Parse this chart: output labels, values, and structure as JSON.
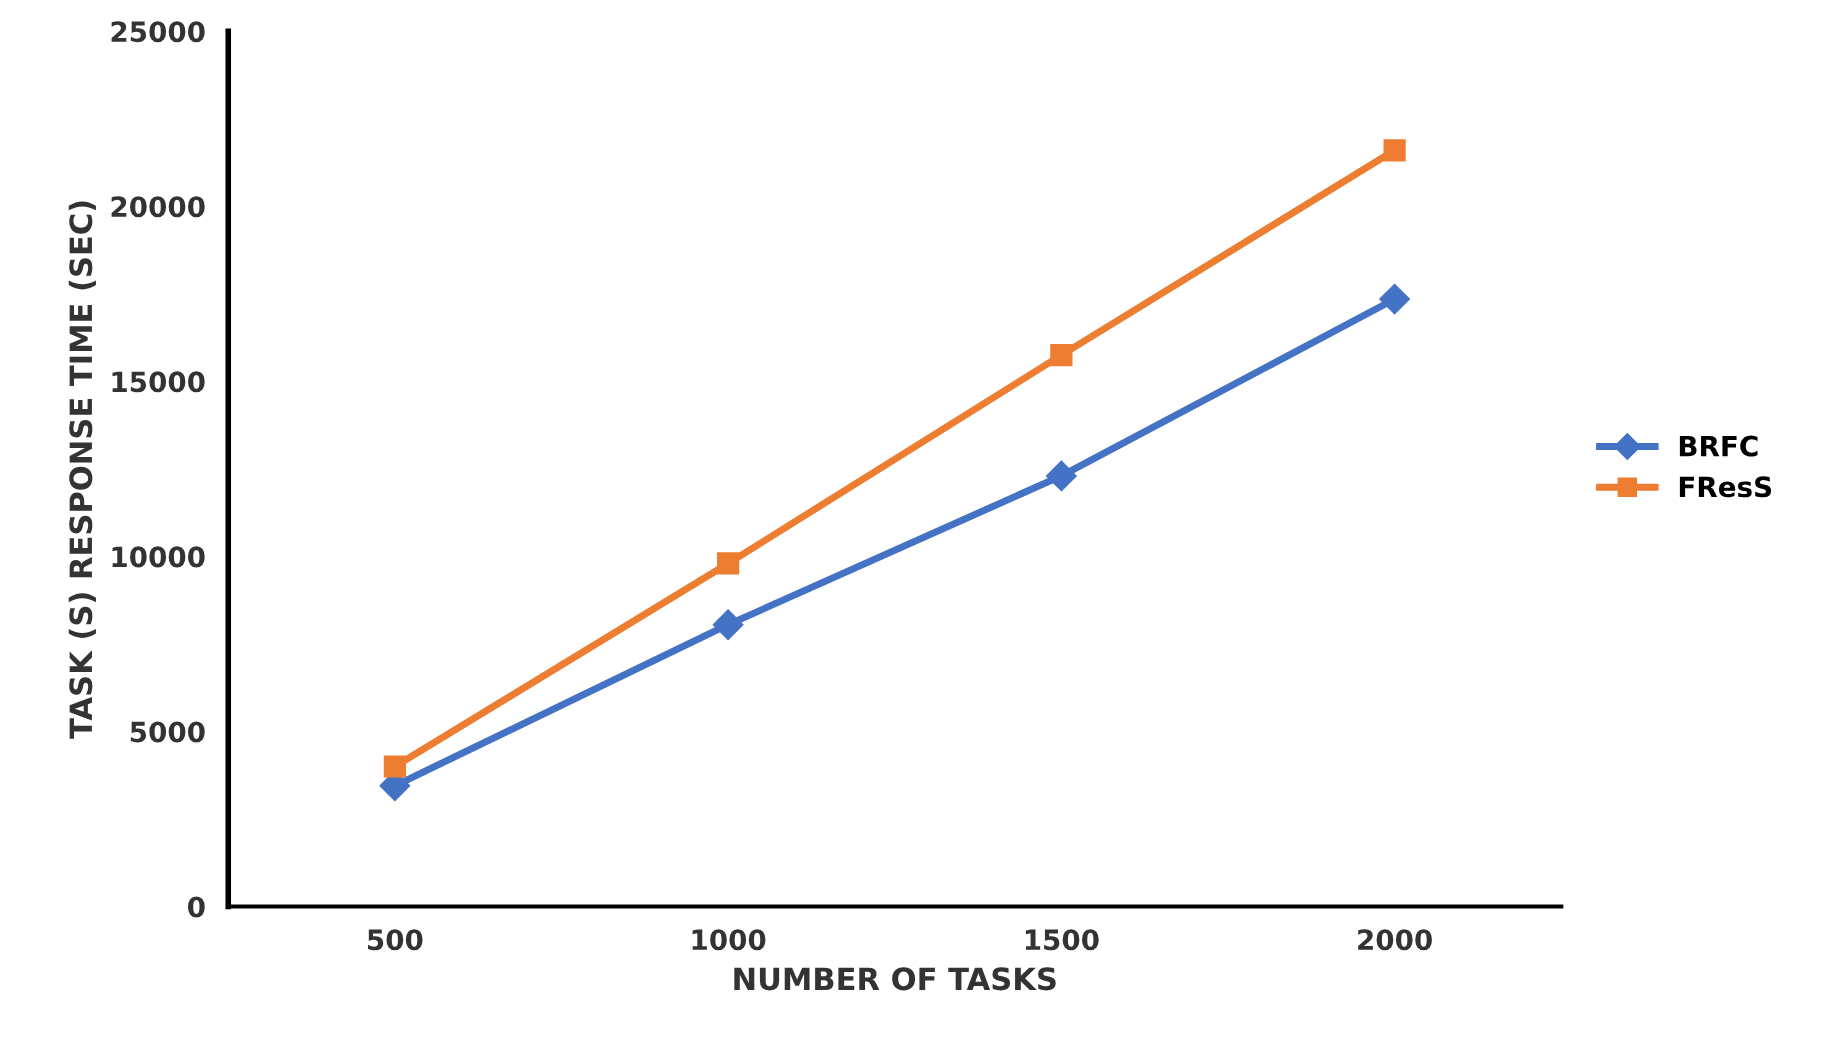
{
  "chart_data": {
    "type": "line",
    "xlabel": "NUMBER OF TASKS",
    "ylabel": "TASK (S) RESPONSE TIME (SEC)",
    "categories": [
      "500",
      "1000",
      "1500",
      "2000"
    ],
    "series": [
      {
        "name": "BRFC",
        "color": "#4472c4",
        "values": [
          3450,
          8050,
          12300,
          17350
        ],
        "marker": "diamond"
      },
      {
        "name": "FResS",
        "color": "#ed7d31",
        "values": [
          4000,
          9800,
          15750,
          21600
        ],
        "marker": "square"
      }
    ],
    "ylim": [
      0,
      25000
    ],
    "yticks": [
      0,
      5000,
      10000,
      15000,
      20000,
      25000
    ],
    "grid": false,
    "legend": "right",
    "line_style": "solid"
  }
}
